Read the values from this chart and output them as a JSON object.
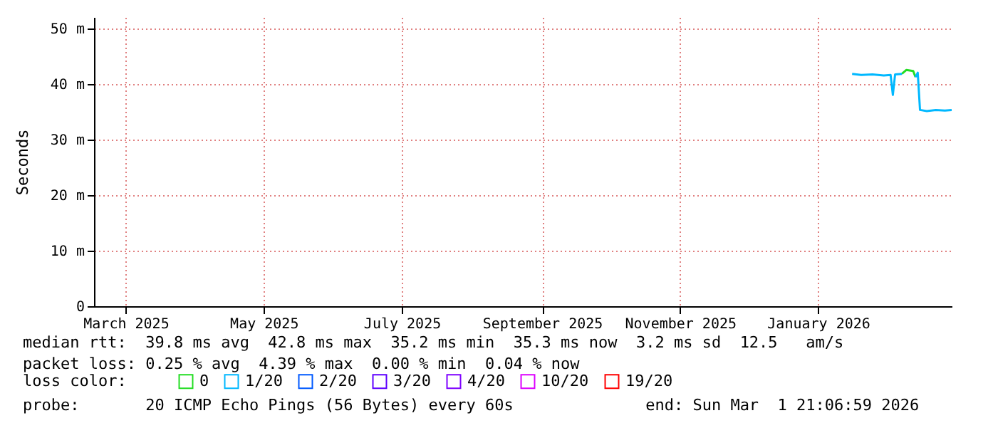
{
  "chart_data": {
    "type": "line",
    "ylabel": "Seconds",
    "legend_title": "loss color:",
    "legend": "bottom",
    "grid": true,
    "x": [
      "2026-01-16",
      "2026-01-20",
      "2026-01-25",
      "2026-01-30",
      "2026-02-02",
      "2026-02-03",
      "2026-02-04",
      "2026-02-07",
      "2026-02-09",
      "2026-02-12",
      "2026-02-13",
      "2026-02-14",
      "2026-02-15",
      "2026-02-18",
      "2026-02-22",
      "2026-02-26",
      "2026-03-01"
    ],
    "series": [
      {
        "name": "0",
        "color": "#22dd22",
        "values": [
          null,
          null,
          null,
          null,
          null,
          null,
          null,
          41.8,
          42.5,
          42.3,
          41.2,
          null,
          null,
          null,
          null,
          null,
          null
        ]
      },
      {
        "name": "1/20",
        "color": "#00b8ff",
        "values": [
          41.8,
          41.6,
          41.7,
          41.5,
          41.6,
          38.0,
          41.7,
          41.8,
          null,
          null,
          41.2,
          42.0,
          35.3,
          35.1,
          35.3,
          35.2,
          35.3
        ]
      },
      {
        "name": "2/20",
        "color": "#0059ff",
        "values": [
          null,
          null,
          null,
          null,
          null,
          null,
          null,
          null,
          null,
          null,
          null,
          null,
          null,
          null,
          null,
          null,
          null
        ]
      },
      {
        "name": "3/20",
        "color": "#5e00ff",
        "values": [
          null,
          null,
          null,
          null,
          null,
          null,
          null,
          null,
          null,
          null,
          null,
          null,
          null,
          null,
          null,
          null,
          null
        ]
      },
      {
        "name": "4/20",
        "color": "#7e00ff",
        "values": [
          null,
          null,
          null,
          null,
          null,
          null,
          null,
          null,
          null,
          null,
          null,
          null,
          null,
          null,
          null,
          null,
          null
        ]
      },
      {
        "name": "10/20",
        "color": "#dd00ff",
        "values": [
          null,
          null,
          null,
          null,
          null,
          null,
          null,
          null,
          null,
          null,
          null,
          null,
          null,
          null,
          null,
          null,
          null
        ]
      },
      {
        "name": "19/20",
        "color": "#ff0000",
        "values": [
          null,
          null,
          null,
          null,
          null,
          null,
          null,
          null,
          null,
          null,
          null,
          null,
          null,
          null,
          null,
          null,
          null
        ]
      }
    ],
    "xlim": [
      "2025-02-15",
      "2026-03-01"
    ],
    "xticks": [
      {
        "value": "2025-03-01",
        "label": "March 2025"
      },
      {
        "value": "2025-05-01",
        "label": "May 2025"
      },
      {
        "value": "2025-07-01",
        "label": "July 2025"
      },
      {
        "value": "2025-09-01",
        "label": "September 2025"
      },
      {
        "value": "2025-11-01",
        "label": "November 2025"
      },
      {
        "value": "2026-01-01",
        "label": "January 2026"
      }
    ],
    "ylim": [
      0,
      52
    ],
    "yticks": [
      0,
      {
        "value": 10,
        "label": "10 m"
      },
      {
        "value": 20,
        "label": "20 m"
      },
      {
        "value": 30,
        "label": "30 m"
      },
      {
        "value": 40,
        "label": "40 m"
      },
      {
        "value": 50,
        "label": "50 m"
      }
    ],
    "annotations": [
      "median rtt:  39.8 ms avg  42.8 ms max  35.2 ms min  35.3 ms now  3.2 ms sd  12.5   am/s",
      "packet loss: 0.25 % avg  4.39 % max  0.00 % min  0.04 % now",
      "probe:       20 ICMP Echo Pings (56 Bytes) every 60s              end: Sun Mar  1 21:06:59 2026"
    ]
  }
}
